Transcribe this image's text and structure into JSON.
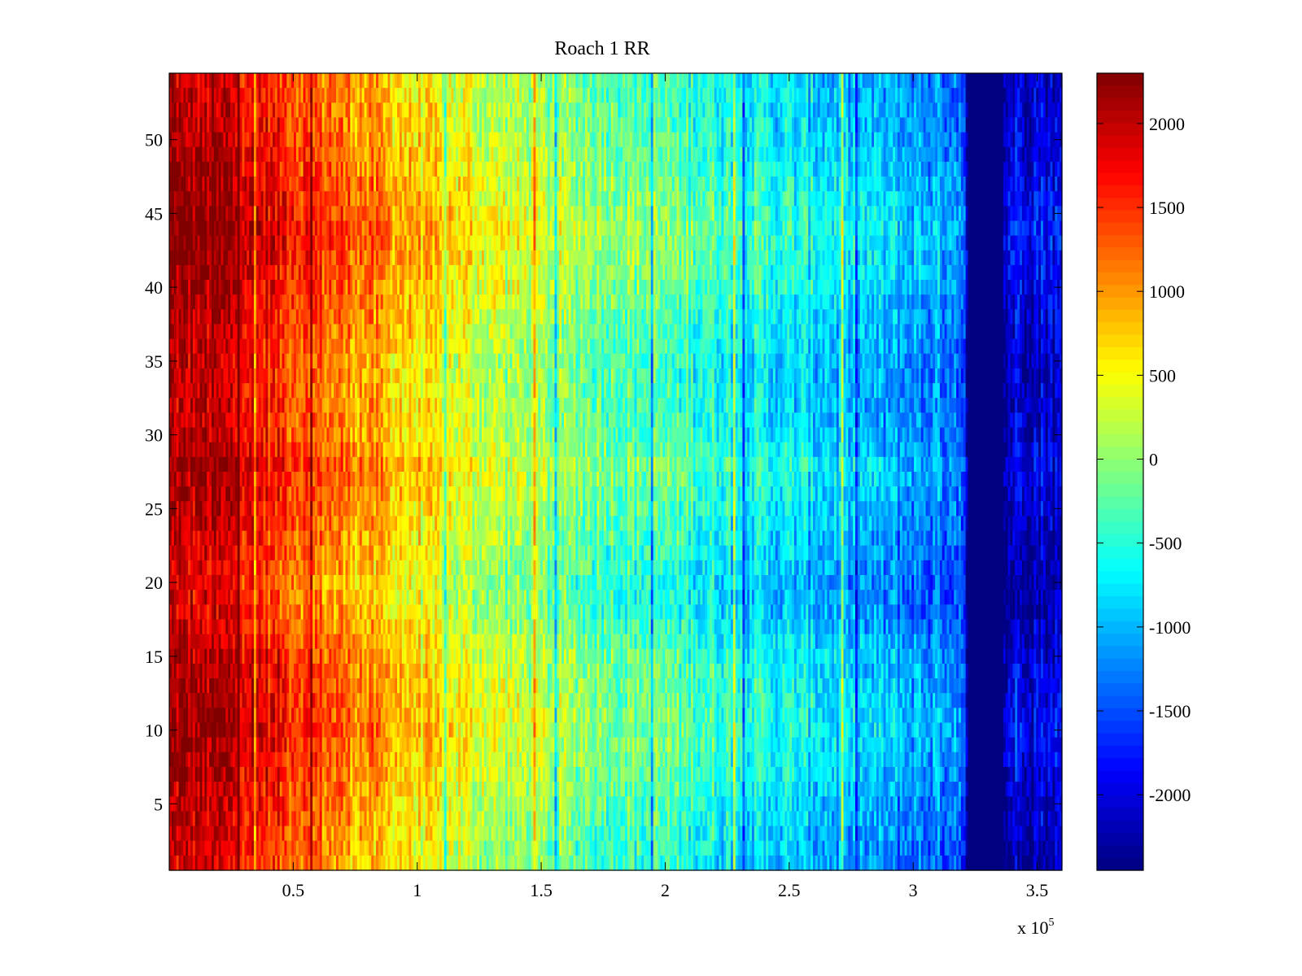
{
  "chart_data": {
    "type": "heatmap",
    "title": "Roach 1 RR",
    "xlabel": "",
    "ylabel": "",
    "x_multiplier_label": "x 10",
    "x_multiplier_exponent": "5",
    "xlim": [
      0,
      3.6
    ],
    "ylim": [
      0.5,
      54.5
    ],
    "x_ticks": [
      0.5,
      1,
      1.5,
      2,
      2.5,
      3,
      3.5
    ],
    "x_tick_labels": [
      "0.5",
      "1",
      "1.5",
      "2",
      "2.5",
      "3",
      "3.5"
    ],
    "y_ticks": [
      5,
      10,
      15,
      20,
      25,
      30,
      35,
      40,
      45,
      50
    ],
    "y_tick_labels": [
      "5",
      "10",
      "15",
      "20",
      "25",
      "30",
      "35",
      "40",
      "45",
      "50"
    ],
    "colorbar": {
      "colormap": "jet",
      "clim": [
        -2450,
        2300
      ],
      "ticks": [
        2000,
        1500,
        1000,
        500,
        0,
        -500,
        -1000,
        -1500,
        -2000
      ],
      "tick_labels": [
        "2000",
        "1500",
        "1000",
        "500",
        "0",
        "-500",
        "-1000",
        "-1500",
        "-2000"
      ]
    },
    "rows": 54,
    "column_trend": {
      "description_units": "x in units of 10^5, value in colorbar units",
      "x": [
        0.0,
        0.1,
        0.25,
        0.5,
        0.75,
        1.0,
        1.25,
        1.5,
        1.75,
        2.0,
        2.25,
        2.5,
        2.75,
        3.0,
        3.2,
        3.22,
        3.36,
        3.4,
        3.6
      ],
      "values": [
        2000,
        2000,
        1900,
        1400,
        1000,
        600,
        250,
        0,
        -200,
        -350,
        -600,
        -800,
        -1000,
        -1200,
        -1300,
        -2450,
        -2450,
        -2000,
        -2100
      ]
    },
    "row_modulation": {
      "rows": [
        1,
        5,
        10,
        15,
        18,
        20,
        25,
        28,
        30,
        35,
        40,
        44,
        50,
        54
      ],
      "offsets": [
        -150,
        0,
        250,
        100,
        -150,
        -200,
        50,
        200,
        0,
        -50,
        200,
        350,
        50,
        0
      ]
    }
  }
}
